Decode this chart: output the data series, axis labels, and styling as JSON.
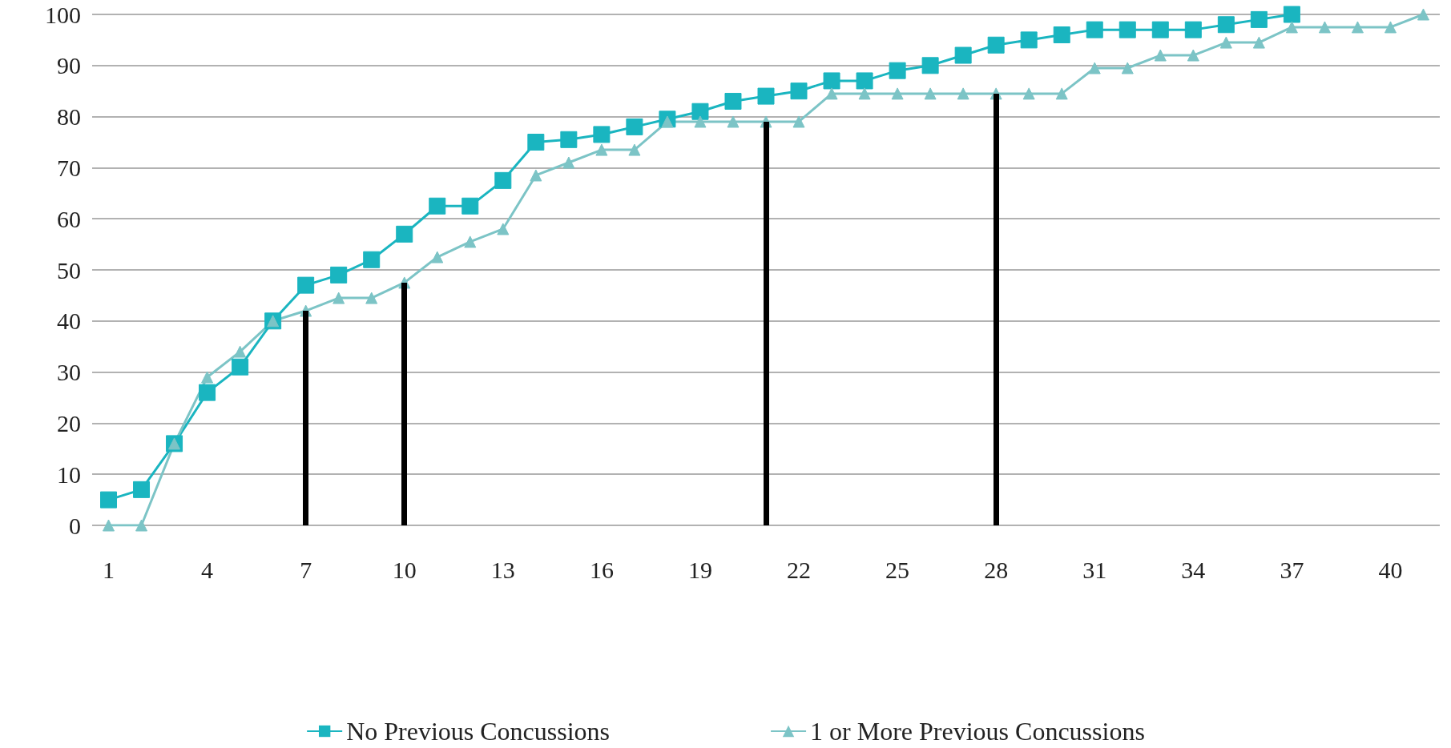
{
  "chart_data": {
    "type": "line",
    "x": [
      1,
      2,
      3,
      4,
      5,
      6,
      7,
      8,
      9,
      10,
      11,
      12,
      13,
      14,
      15,
      16,
      17,
      18,
      19,
      20,
      21,
      22,
      23,
      24,
      25,
      26,
      27,
      28,
      29,
      30,
      31,
      32,
      33,
      34,
      35,
      36,
      37,
      38,
      39,
      40,
      41
    ],
    "xlim": [
      0.5,
      41.5
    ],
    "xticks": [
      1,
      4,
      7,
      10,
      13,
      16,
      19,
      22,
      25,
      28,
      31,
      34,
      37,
      40
    ],
    "ylim": [
      0,
      100
    ],
    "yticks": [
      0,
      10,
      20,
      30,
      40,
      50,
      60,
      70,
      80,
      90,
      100
    ],
    "grid": "y",
    "legend": "bottom",
    "line_style": "solid",
    "series": [
      {
        "name": "No Previous Concussions",
        "color": "#1ab5c0",
        "marker": "square",
        "values": [
          5,
          7,
          16,
          26,
          31,
          40,
          47,
          49,
          52,
          57,
          62.5,
          62.5,
          67.5,
          75,
          75.5,
          76.5,
          78,
          79.5,
          81,
          83,
          84,
          85,
          87,
          87,
          89,
          90,
          92,
          94,
          95,
          96,
          97,
          97,
          97,
          97,
          98,
          99,
          100,
          null,
          null,
          null,
          null
        ]
      },
      {
        "name": "1 or More Previous Concussions",
        "color": "#7cc4c6",
        "marker": "triangle",
        "values": [
          0,
          0,
          16,
          29,
          34,
          40,
          42,
          44.5,
          44.5,
          47.5,
          52.5,
          55.5,
          58,
          68.5,
          71,
          73.5,
          73.5,
          79,
          79,
          79,
          79,
          79,
          84.5,
          84.5,
          84.5,
          84.5,
          84.5,
          84.5,
          84.5,
          84.5,
          89.5,
          89.5,
          92,
          92,
          94.5,
          94.5,
          97.5,
          97.5,
          97.5,
          97.5,
          100
        ]
      }
    ],
    "ref_lines": [
      {
        "axis": "x",
        "value": 7,
        "color": "#000000"
      },
      {
        "axis": "x",
        "value": 10,
        "color": "#000000"
      },
      {
        "axis": "x",
        "value": 21,
        "color": "#000000"
      },
      {
        "axis": "x",
        "value": 28,
        "color": "#000000"
      }
    ]
  }
}
